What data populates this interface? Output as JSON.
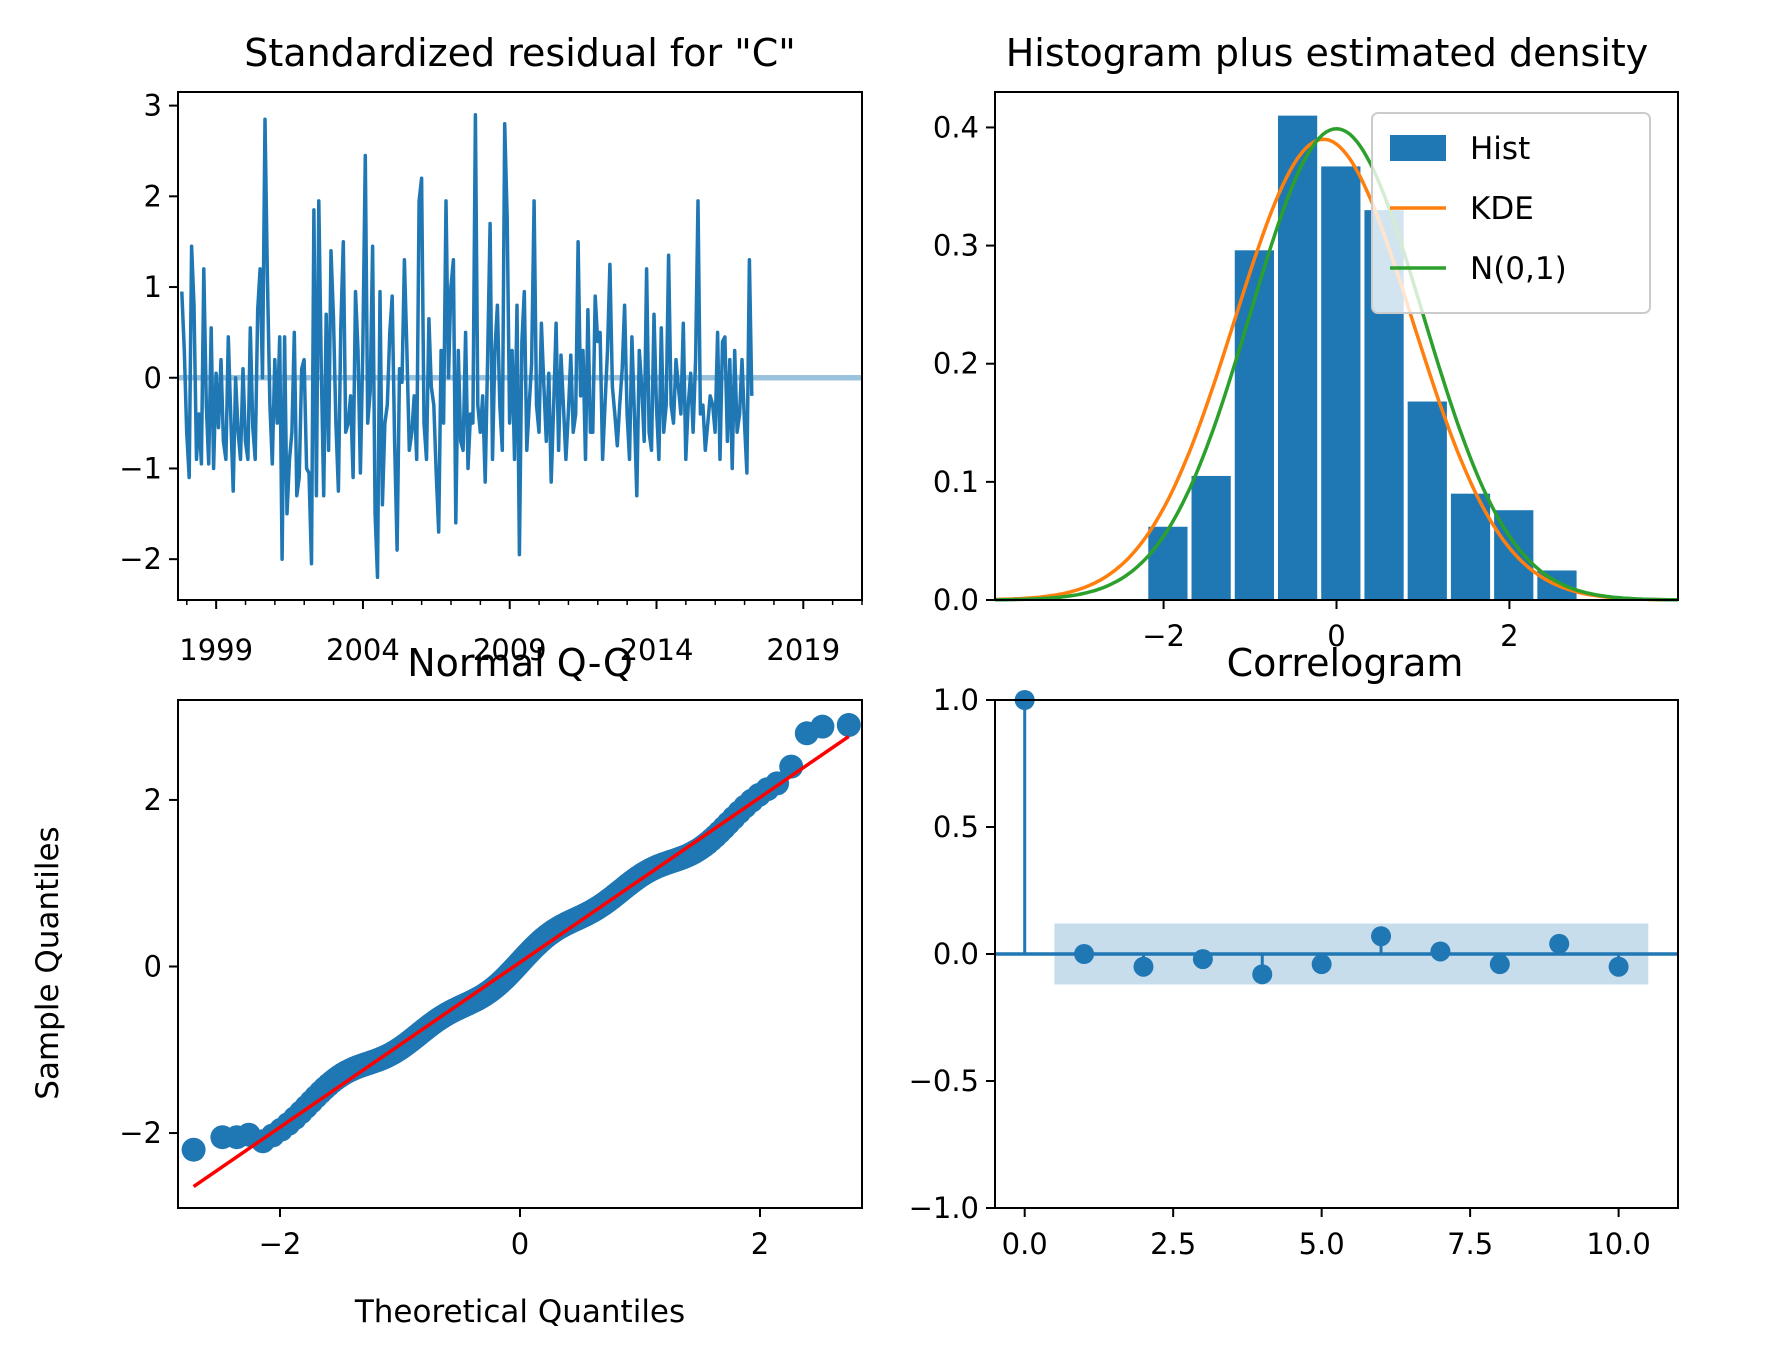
{
  "chart_data": [
    {
      "type": "line",
      "title": "Standardized residual for \"C\"",
      "xlabel": "",
      "ylabel": "",
      "xlim": [
        1997.7,
        2021.0
      ],
      "ylim": [
        -2.45,
        3.15
      ],
      "x_ticks": [
        1999,
        2004,
        2009,
        2014,
        2019
      ],
      "y_ticks": [
        -2,
        -1,
        0,
        1,
        2,
        3
      ],
      "x_start": 1997.83,
      "x_step": 0.0833333,
      "series": [
        {
          "values": [
            0.95,
            0.3,
            -0.6,
            -1.1,
            1.45,
            0.8,
            -0.9,
            -0.4,
            -0.95,
            1.2,
            -0.3,
            -0.95,
            0.55,
            -1.0,
            0.05,
            -0.55,
            0.2,
            -0.7,
            -0.9,
            0.45,
            -0.4,
            -1.25,
            0.0,
            -0.6,
            -0.9,
            0.1,
            -0.7,
            -0.9,
            0.55,
            -0.55,
            -0.9,
            0.75,
            1.2,
            0.0,
            2.85,
            1.1,
            -0.3,
            -0.95,
            0.2,
            -0.5,
            0.45,
            -2.0,
            0.45,
            -1.5,
            -0.9,
            -0.6,
            0.5,
            -1.3,
            -1.1,
            0.1,
            0.2,
            -1.0,
            -1.05,
            -2.05,
            1.85,
            -1.3,
            1.95,
            0.1,
            -1.3,
            0.7,
            -0.8,
            1.4,
            0.65,
            -0.5,
            -1.25,
            0.55,
            1.5,
            -0.6,
            -0.5,
            -0.2,
            -1.1,
            0.95,
            0.3,
            -1.05,
            0.3,
            2.45,
            -0.5,
            -0.15,
            1.45,
            -1.5,
            -2.2,
            0.95,
            -1.4,
            -0.5,
            -0.3,
            0.5,
            0.9,
            -0.7,
            -1.9,
            0.1,
            -0.05,
            1.3,
            0.3,
            -0.8,
            -0.6,
            -0.2,
            -0.9,
            1.95,
            2.2,
            -0.5,
            -0.9,
            0.65,
            -0.1,
            -0.3,
            -1.05,
            -1.7,
            0.3,
            -0.5,
            1.95,
            0.0,
            1.0,
            1.3,
            -1.6,
            0.3,
            -0.7,
            -0.8,
            0.5,
            -1.0,
            -0.4,
            -0.5,
            2.9,
            -0.3,
            -0.6,
            -0.2,
            -1.15,
            0.2,
            1.7,
            -0.9,
            0.3,
            0.8,
            -0.3,
            -0.8,
            2.8,
            1.75,
            -0.5,
            0.3,
            -0.9,
            0.8,
            -1.95,
            0.4,
            0.95,
            -0.8,
            -0.3,
            0.15,
            1.95,
            -0.3,
            -0.6,
            0.6,
            -0.1,
            -0.7,
            0.05,
            -1.15,
            -0.3,
            0.6,
            -0.8,
            0.25,
            -0.3,
            -0.9,
            -0.4,
            0.25,
            -0.6,
            -0.4,
            1.5,
            -0.2,
            0.3,
            -0.9,
            0.75,
            -0.6,
            -0.6,
            0.9,
            0.4,
            0.5,
            -0.9,
            -0.3,
            0.3,
            1.25,
            -0.1,
            -0.4,
            -0.75,
            -0.3,
            0.1,
            0.8,
            -0.4,
            -0.9,
            0.45,
            -0.4,
            -1.3,
            0.3,
            -0.1,
            -0.7,
            1.2,
            -0.6,
            -0.8,
            0.7,
            -0.3,
            -0.9,
            0.55,
            -0.6,
            -0.3,
            1.35,
            -0.3,
            -0.5,
            0.2,
            -0.1,
            -0.4,
            0.6,
            -0.9,
            -0.3,
            0.05,
            -0.6,
            0.2,
            1.95,
            -0.4,
            -0.3,
            -0.8,
            -0.5,
            -0.2,
            -0.3,
            -0.6,
            0.5,
            -0.9,
            0.4,
            0.45,
            -0.7,
            0.2,
            -1.0,
            0.3,
            -0.6,
            -0.4,
            0.2,
            -0.5,
            -1.05,
            1.3,
            -0.2
          ]
        }
      ],
      "zero_band": [
        -0.03,
        0.03
      ],
      "colors": {
        "line": "#1f77b4",
        "band": "#1f77b4"
      }
    },
    {
      "type": "bar",
      "title": "Histogram plus estimated density",
      "xlabel": "",
      "ylabel": "",
      "xlim": [
        -3.95,
        3.95
      ],
      "ylim": [
        0,
        0.43
      ],
      "x_ticks": [
        -2,
        0,
        2
      ],
      "x_tick_labels": [
        "−2",
        "0",
        "2"
      ],
      "y_ticks": [
        0.0,
        0.1,
        0.2,
        0.3,
        0.4
      ],
      "y_tick_labels": [
        "0.0",
        "0.1",
        "0.2",
        "0.3",
        "0.4"
      ],
      "bins": [
        {
          "x0": -2.2,
          "x1": -1.7,
          "value": 0.062
        },
        {
          "x0": -1.7,
          "x1": -1.2,
          "value": 0.105
        },
        {
          "x0": -1.2,
          "x1": -0.7,
          "value": 0.296
        },
        {
          "x0": -0.7,
          "x1": -0.2,
          "value": 0.41
        },
        {
          "x0": -0.2,
          "x1": 0.3,
          "value": 0.367
        },
        {
          "x0": 0.3,
          "x1": 0.8,
          "value": 0.33
        },
        {
          "x0": 0.8,
          "x1": 1.3,
          "value": 0.168
        },
        {
          "x0": 1.3,
          "x1": 1.8,
          "value": 0.09
        },
        {
          "x0": 1.8,
          "x1": 2.3,
          "value": 0.076
        },
        {
          "x0": 2.3,
          "x1": 2.8,
          "value": 0.025
        }
      ],
      "kde": {
        "mean": -0.15,
        "sd": 1.03,
        "peak": 0.39
      },
      "normal": {
        "mean": 0,
        "sd": 1
      },
      "legend": {
        "placement": "upper-right",
        "entries": [
          "Hist",
          "KDE",
          "N(0,1)"
        ]
      },
      "colors": {
        "hist": "#1f77b4",
        "kde": "#ff7f0e",
        "normal": "#2ca02c"
      }
    },
    {
      "type": "scatter",
      "title": "Normal Q-Q",
      "xlabel": "Theoretical Quantiles",
      "ylabel": "Sample Quantiles",
      "xlim": [
        -2.85,
        2.85
      ],
      "ylim": [
        -2.9,
        3.2
      ],
      "x_ticks": [
        -2,
        0,
        2
      ],
      "x_tick_labels": [
        "−2",
        "0",
        "2"
      ],
      "y_ticks": [
        -2,
        0,
        2
      ],
      "y_tick_labels": [
        "−2",
        "0",
        "2"
      ],
      "n_points": 280,
      "ref_line": {
        "slope": 0.99,
        "intercept": 0.05
      },
      "tail_points": [
        {
          "x": -2.72,
          "y": -2.2
        },
        {
          "x": -2.48,
          "y": -2.05
        },
        {
          "x": -2.36,
          "y": -2.05
        },
        {
          "x": -2.26,
          "y": -2.02
        },
        {
          "x": 2.26,
          "y": 2.4
        },
        {
          "x": 2.39,
          "y": 2.8
        },
        {
          "x": 2.52,
          "y": 2.88
        },
        {
          "x": 2.74,
          "y": 2.9
        }
      ],
      "colors": {
        "points": "#1f77b4",
        "line": "#ff0000"
      }
    },
    {
      "type": "scatter",
      "title": "Correlogram",
      "xlabel": "",
      "ylabel": "",
      "xlim": [
        -0.5,
        11.0
      ],
      "ylim": [
        -1.0,
        1.0
      ],
      "x_ticks": [
        0.0,
        2.5,
        5.0,
        7.5,
        10.0
      ],
      "x_tick_labels": [
        "0.0",
        "2.5",
        "5.0",
        "7.5",
        "10.0"
      ],
      "y_ticks": [
        -1.0,
        -0.5,
        0.0,
        0.5,
        1.0
      ],
      "y_tick_labels": [
        "−1.0",
        "−0.5",
        "0.0",
        "0.5",
        "1.0"
      ],
      "lags": [
        0,
        1,
        2,
        3,
        4,
        5,
        6,
        7,
        8,
        9,
        10
      ],
      "acf": [
        1.0,
        0.0,
        -0.05,
        -0.02,
        -0.08,
        -0.04,
        0.07,
        0.01,
        -0.04,
        0.04,
        -0.05
      ],
      "conf_band": {
        "lag_range": [
          0.5,
          10.5
        ],
        "bounds": [
          -0.12,
          0.12
        ]
      },
      "colors": {
        "stem": "#1f77b4",
        "band": "#1f77b4"
      }
    }
  ]
}
